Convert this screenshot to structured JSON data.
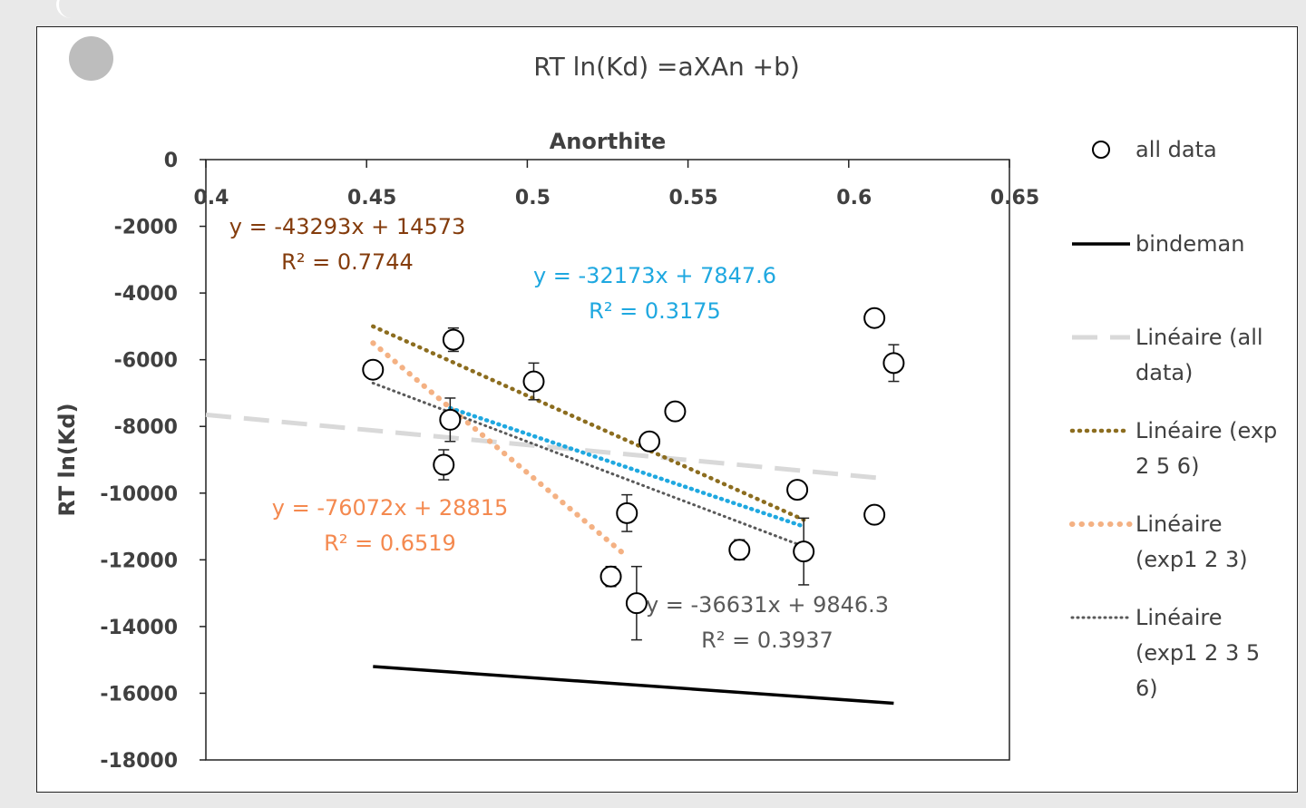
{
  "chart_data": {
    "type": "scatter",
    "title": "RT ln(Kd) =aXAn +b)",
    "xlabel": "Anorthite",
    "ylabel": "RT ln(Kd)",
    "xlim": [
      0.4,
      0.65
    ],
    "ylim": [
      -18000,
      0
    ],
    "x_ticks": [
      "0.4",
      "0.45",
      "0.5",
      "0.55",
      "0.6",
      "0.65"
    ],
    "y_ticks": [
      "0",
      "-2000",
      "-4000",
      "-6000",
      "-8000",
      "-10000",
      "-12000",
      "-14000",
      "-16000",
      "-18000"
    ],
    "x_axis_position": "top",
    "grid": false,
    "legend_position": "right",
    "points": [
      {
        "x": 0.452,
        "y": -6300,
        "err": 0
      },
      {
        "x": 0.474,
        "y": -9150,
        "err": 450
      },
      {
        "x": 0.476,
        "y": -7800,
        "err": 650
      },
      {
        "x": 0.477,
        "y": -5400,
        "err": 350
      },
      {
        "x": 0.502,
        "y": -6650,
        "err": 550
      },
      {
        "x": 0.526,
        "y": -12500,
        "err": 300
      },
      {
        "x": 0.531,
        "y": -10600,
        "err": 550
      },
      {
        "x": 0.534,
        "y": -13300,
        "err": 1100
      },
      {
        "x": 0.538,
        "y": -8450,
        "err": 0
      },
      {
        "x": 0.546,
        "y": -7550,
        "err": 0
      },
      {
        "x": 0.566,
        "y": -11700,
        "err": 300
      },
      {
        "x": 0.584,
        "y": -9900,
        "err": 0
      },
      {
        "x": 0.586,
        "y": -11750,
        "err": 1000
      },
      {
        "x": 0.608,
        "y": -4750,
        "err": 0
      },
      {
        "x": 0.608,
        "y": -10650,
        "err": 0
      },
      {
        "x": 0.614,
        "y": -6100,
        "err": 550
      }
    ],
    "series": [
      {
        "name": "all data",
        "style": "circle",
        "color": "#000000"
      },
      {
        "name": "bindeman",
        "style": "solid",
        "color": "#000000",
        "x": [
          0.452,
          0.614
        ],
        "y": [
          -15200,
          -16300
        ]
      },
      {
        "name": "Linéaire (all data)",
        "style": "dash",
        "color": "#d9d9d9",
        "x": [
          0.4,
          0.61
        ],
        "y": [
          -7650,
          -9550
        ]
      },
      {
        "name": "Linéaire (exp 2 5 6)",
        "style": "dotted",
        "color": "#8c6d1f",
        "x": [
          0.452,
          0.586
        ],
        "y": [
          -5000,
          -10800
        ]
      },
      {
        "name": "Linéaire (exp1 2 3)",
        "style": "dotted-round",
        "color": "#f4b183",
        "x": [
          0.452,
          0.531
        ],
        "y": [
          -5500,
          -11900
        ]
      },
      {
        "name": "Linéaire (exp1 2 3 5 6)",
        "style": "dotted-fine",
        "color": "#595959",
        "x": [
          0.452,
          0.586
        ],
        "y": [
          -6700,
          -11600
        ]
      },
      {
        "name": "",
        "style": "dotted-blue",
        "color": "#1fa8e0",
        "x": [
          0.476,
          0.586
        ],
        "y": [
          -7450,
          -11000
        ]
      }
    ],
    "equations": [
      {
        "eq": "y = -43293x + 14573",
        "r2": "R² = 0.7744",
        "color": "#843c0c"
      },
      {
        "eq": "y = -32173x + 7847.6",
        "r2": "R² = 0.3175",
        "color": "#1fa8e0"
      },
      {
        "eq": "y = -76072x + 28815",
        "r2": "R² = 0.6519",
        "color": "#f4894f"
      },
      {
        "eq": "y = -36631x + 9846.3",
        "r2": "R² = 0.3937",
        "color": "#595959"
      }
    ],
    "legend_lines": [
      [
        "all data"
      ],
      [
        "bindeman"
      ],
      [
        "Linéaire (all",
        "data)"
      ],
      [
        "Linéaire (exp",
        "2 5 6)"
      ],
      [
        "Linéaire",
        "(exp1 2 3)"
      ],
      [
        "Linéaire",
        "(exp1 2 3 5",
        "6)"
      ]
    ]
  }
}
